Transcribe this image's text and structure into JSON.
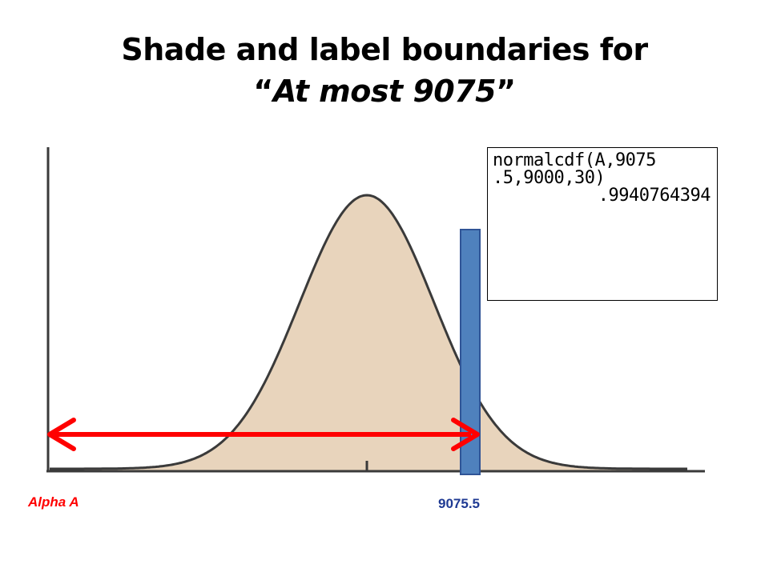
{
  "title": {
    "line1": "Shade and label boundaries for",
    "line2_open_quote": "“",
    "line2_italic": "At most 9075",
    "line2_close_quote": "”"
  },
  "calculator": {
    "line1": "normalcdf(A,9075",
    "line2": ".5,9000,30)",
    "result": ".9940764394"
  },
  "labels": {
    "left_bound": "Alpha A",
    "right_bound": "9075.5"
  },
  "colors": {
    "curve_fill": "#e8d4bc",
    "curve_stroke": "#3a3a3a",
    "boundary_bar": "#4f81bd",
    "boundary_bar_border": "#2f5496",
    "arrow": "#ff0000",
    "left_label": "#ff0000",
    "right_label": "#1f3a93"
  },
  "distribution": {
    "mean": 9000,
    "sd": 30,
    "boundary": 9075.5
  }
}
